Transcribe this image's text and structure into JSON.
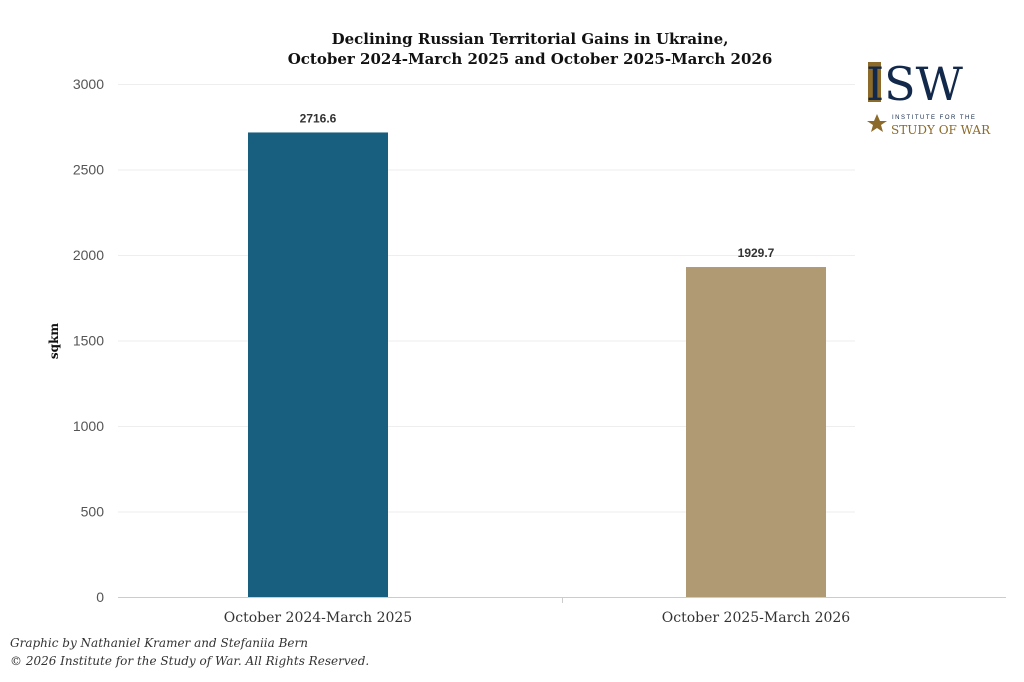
{
  "chart_data": {
    "type": "bar",
    "title": "Declining Russian Territorial Gains in Ukraine,",
    "subtitle": "October 2024-March 2025 and October 2025-March 2026",
    "xlabel": "",
    "ylabel": "sqkm",
    "ylim": [
      0,
      3000
    ],
    "yticks": [
      0,
      500,
      1000,
      1500,
      2000,
      2500,
      3000
    ],
    "grid": true,
    "categories": [
      "October 2024-March 2025",
      "October 2025-March 2026"
    ],
    "values": [
      2716.6,
      1929.7
    ],
    "data_labels": [
      "2716.6",
      "1929.7"
    ],
    "colors": [
      "#175e7f",
      "#b09a74"
    ]
  },
  "logo": {
    "main": "ISW",
    "line1": "INSTITUTE FOR THE",
    "line2": "STUDY OF WAR",
    "navy": "#13294b",
    "gold": "#8c6a2a"
  },
  "credits": {
    "line1": "Graphic by Nathaniel Kramer and Stefaniia Bern",
    "line2": "© 2026 Institute for the Study of War. All Rights Reserved."
  }
}
